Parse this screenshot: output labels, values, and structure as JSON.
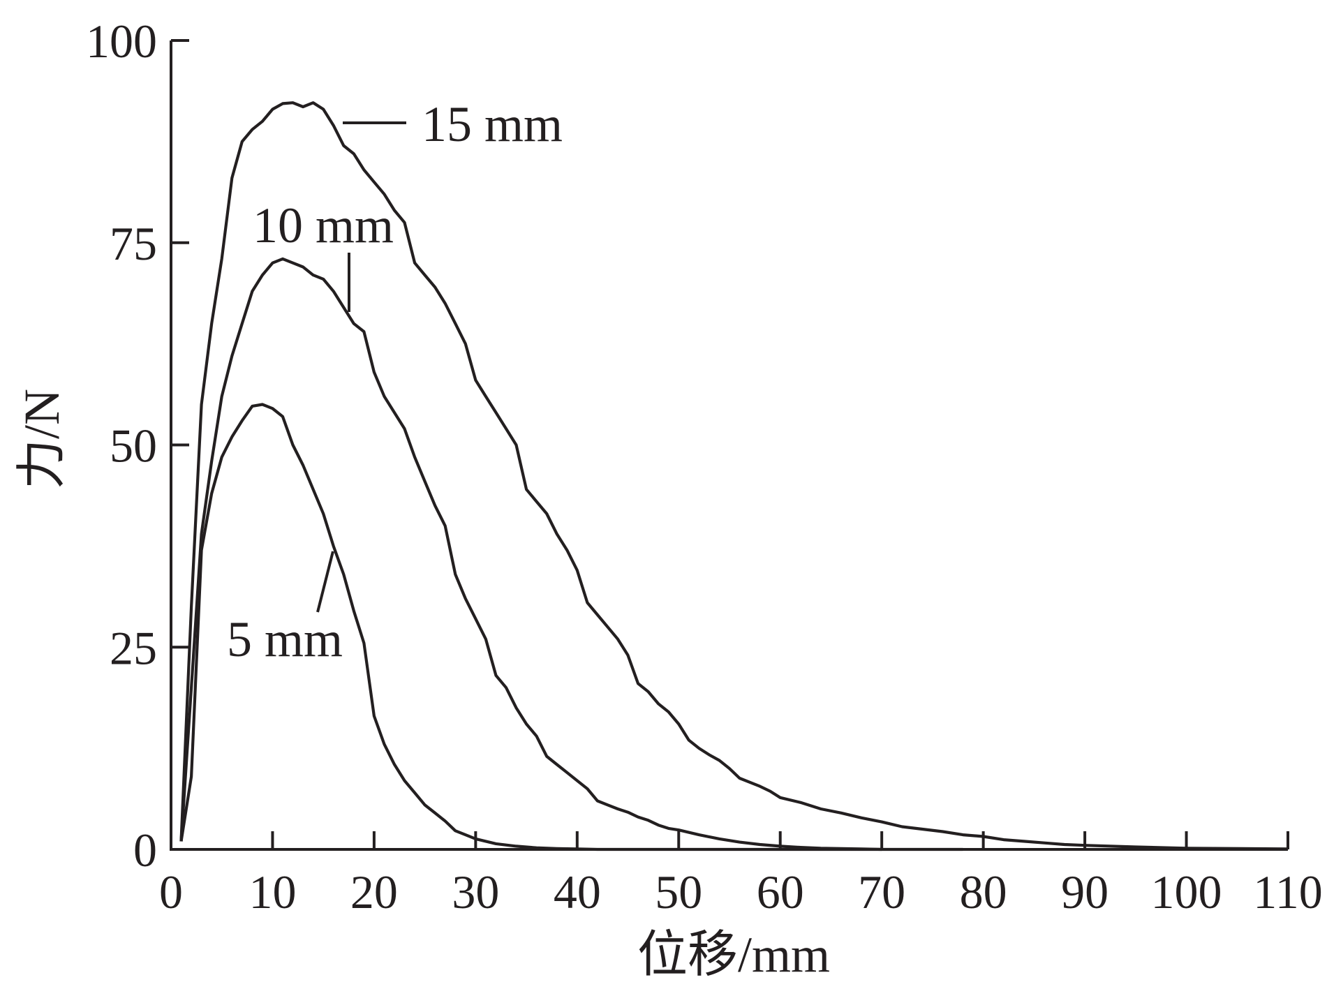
{
  "chart_data": {
    "type": "line",
    "xlabel": "位移/mm",
    "ylabel": "力/N",
    "xlim": [
      0,
      110
    ],
    "ylim": [
      0,
      100
    ],
    "x_ticks": [
      0,
      10,
      20,
      30,
      40,
      50,
      60,
      70,
      80,
      90,
      100,
      110
    ],
    "y_ticks": [
      0,
      25,
      50,
      75,
      100
    ],
    "grid": false,
    "legend": "none (curves labeled directly)",
    "series": [
      {
        "name": "5 mm",
        "x": [
          1,
          2,
          3,
          4,
          5,
          6,
          7,
          8,
          9,
          10,
          11,
          12,
          13,
          14,
          15,
          16,
          17,
          18,
          19,
          20,
          21,
          22,
          23,
          24,
          25,
          26,
          27,
          28,
          29,
          30,
          32,
          34,
          36,
          38,
          40,
          42,
          50,
          60,
          70,
          78
        ],
        "y": [
          1,
          9,
          37,
          44,
          48.5,
          51,
          53,
          54.8,
          55,
          54.5,
          53.5,
          50,
          47.5,
          44.5,
          41.5,
          37.5,
          34,
          29.5,
          25.5,
          16.5,
          13,
          10.5,
          8.5,
          7,
          5.5,
          4.5,
          3.5,
          2.3,
          1.8,
          1.3,
          0.7,
          0.4,
          0.2,
          0.1,
          0.05,
          0,
          0,
          0,
          0,
          0
        ]
      },
      {
        "name": "10 mm",
        "x": [
          1,
          2,
          3,
          4,
          5,
          6,
          7,
          8,
          9,
          10,
          11,
          12,
          13,
          14,
          15,
          16,
          17,
          18,
          19,
          20,
          21,
          22,
          23,
          24,
          25,
          26,
          27,
          28,
          29,
          30,
          31,
          32,
          33,
          34,
          35,
          36,
          37,
          38,
          39,
          40,
          41,
          42,
          43,
          44,
          45,
          46,
          47,
          48,
          49,
          50,
          52,
          54,
          56,
          58,
          60,
          62,
          64,
          66,
          68,
          70
        ],
        "y": [
          1,
          20,
          39,
          48,
          56,
          61,
          65,
          69,
          71,
          72.5,
          73,
          72.5,
          72,
          71,
          70.5,
          69,
          67,
          65,
          64,
          59,
          56,
          54,
          52,
          48.5,
          45.5,
          42.5,
          40,
          34,
          31,
          28.5,
          26,
          21.5,
          20,
          17.5,
          15.5,
          14,
          11.5,
          10.5,
          9.5,
          8.5,
          7.5,
          6,
          5.5,
          5,
          4.6,
          4,
          3.6,
          3,
          2.6,
          2.4,
          1.8,
          1.3,
          0.9,
          0.6,
          0.4,
          0.25,
          0.15,
          0.1,
          0.05,
          0
        ]
      },
      {
        "name": "15 mm",
        "x": [
          1,
          2,
          3,
          4,
          5,
          6,
          7,
          8,
          9,
          10,
          11,
          12,
          13,
          14,
          15,
          16,
          17,
          18,
          19,
          20,
          21,
          22,
          23,
          24,
          25,
          26,
          27,
          28,
          29,
          30,
          31,
          32,
          33,
          34,
          35,
          36,
          37,
          38,
          39,
          40,
          41,
          42,
          43,
          44,
          45,
          46,
          47,
          48,
          49,
          50,
          51,
          52,
          53,
          54,
          55,
          56,
          57,
          58,
          59,
          60,
          62,
          64,
          66,
          68,
          70,
          72,
          74,
          76,
          78,
          80,
          82,
          84,
          86,
          88,
          90,
          95,
          100,
          110
        ],
        "y": [
          1,
          30,
          55,
          65,
          73,
          83,
          87.5,
          89,
          90,
          91.5,
          92.2,
          92.3,
          91.8,
          92.3,
          91.5,
          89.5,
          87,
          86,
          84,
          82.5,
          81,
          79,
          77.5,
          72.5,
          71,
          69.5,
          67.5,
          65,
          62.5,
          58,
          56,
          54,
          52,
          50,
          44.5,
          43,
          41.5,
          39,
          37,
          34.5,
          30.5,
          29,
          27.5,
          26,
          24,
          20.5,
          19.5,
          18,
          17,
          15.5,
          13.5,
          12.5,
          11.7,
          11,
          10,
          8.8,
          8.3,
          7.8,
          7.2,
          6.4,
          5.8,
          5,
          4.5,
          3.9,
          3.4,
          2.8,
          2.5,
          2.2,
          1.8,
          1.6,
          1.2,
          1.0,
          0.8,
          0.6,
          0.5,
          0.3,
          0.15,
          0.05
        ]
      }
    ],
    "annotations": [
      {
        "text": "15 mm",
        "series": "15 mm"
      },
      {
        "text": "10 mm",
        "series": "10 mm"
      },
      {
        "text": "5 mm",
        "series": "5 mm"
      }
    ]
  }
}
